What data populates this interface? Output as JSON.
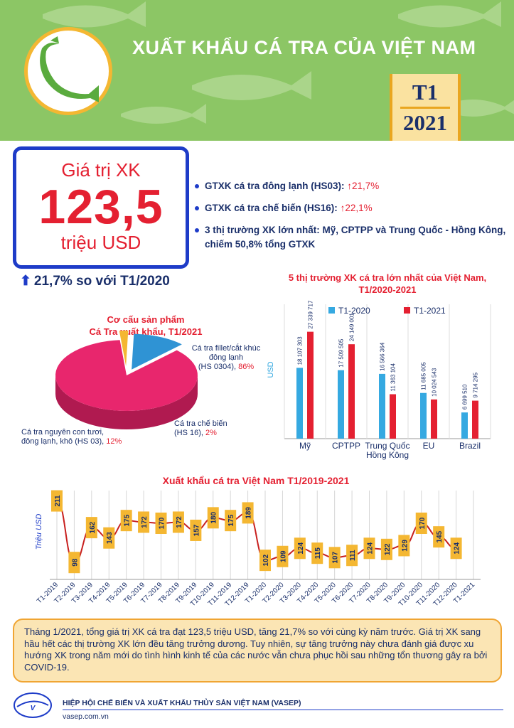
{
  "header": {
    "title": "XUẤT KHẨU CÁ TRA CỦA VIỆT NAM",
    "month": "T1",
    "year": "2021"
  },
  "headline": {
    "label": "Giá trị XK",
    "value": "123,5",
    "unit": "triệu USD",
    "growth_arrow": "⬆",
    "growth": "21,7% so với T1/2020"
  },
  "bullets": [
    {
      "text": "GTXK cá tra đông lạnh (HS03): ",
      "highlight": "↑21,7%"
    },
    {
      "text": "GTXK cá tra chế biến (HS16): ",
      "highlight": "↑22,1%"
    },
    {
      "text": "3 thị trường XK lớn nhất: Mỹ, CPTPP và Trung Quốc - Hồng Kông, chiếm 50,8% tổng GTXK",
      "highlight": ""
    }
  ],
  "colors": {
    "header_green": "#8cc665",
    "accent_red": "#e42031",
    "accent_blue": "#1e3cc8",
    "navy": "#1a2f6a",
    "bar_2020": "#35a9e1",
    "bar_2021": "#e42031",
    "pie_fillet": "#e8266d",
    "pie_processed": "#f4b732",
    "pie_whole": "#2f93d4",
    "line": "#c8201f",
    "label_box": "#f4b732"
  },
  "icons": {
    "logo": "fish-icon",
    "growth": "arrow-up-icon",
    "footer_logo": "vasep-logo"
  },
  "chart_data": [
    {
      "type": "pie",
      "title_line1": "Cơ cấu sản phẩm",
      "title_line2": "Cá Tra xuất khẩu, T1/2021",
      "slices": [
        {
          "label_lines": [
            "Cá tra fillet/cắt khúc",
            "đông lạnh",
            "(HS 0304),"
          ],
          "value": 86,
          "pct_label": "86%"
        },
        {
          "label_lines": [
            "Cá tra chế biến",
            "(HS 16),"
          ],
          "value": 2,
          "pct_label": "2%"
        },
        {
          "label_lines": [
            "Cá tra nguyên con tươi,",
            "đông lạnh, khô (HS 03),"
          ],
          "value": 12,
          "pct_label": "12%"
        }
      ]
    },
    {
      "type": "bar",
      "title_line1": "5 thị trường XK cá tra lớn nhất của Việt Nam,",
      "title_line2": "T1/2020-2021",
      "ylabel": "USD",
      "categories": [
        [
          "Mỹ"
        ],
        [
          "CPTPP"
        ],
        [
          "Trung Quốc",
          "Hồng Kông"
        ],
        [
          "EU"
        ],
        [
          "Brazil"
        ]
      ],
      "series": [
        {
          "name": "T1-2020",
          "values": [
            18107303,
            17509505,
            16566364,
            11685005,
            6699510
          ],
          "labels": [
            "18 107 303",
            "17 509 505",
            "16 566 364",
            "11 685 005",
            "6 699 510"
          ]
        },
        {
          "name": "T1-2021",
          "values": [
            27339717,
            24149001,
            11363104,
            10024543,
            9714295
          ],
          "labels": [
            "27 339 717",
            "24 149 001",
            "11 363 104",
            "10 024 543",
            "9 714 295"
          ]
        }
      ]
    },
    {
      "type": "line",
      "title": "Xuất khẩu cá tra Việt Nam T1/2019-2021",
      "ylabel": "Triệu USD",
      "x": [
        "T1-2019",
        "T2-2019",
        "T3-2019",
        "T4-2019",
        "T5-2019",
        "T6-2019",
        "T7-2019",
        "T8-2019",
        "T9-2019",
        "T10-2019",
        "T11-2019",
        "T12-2019",
        "T1-2020",
        "T2-2020",
        "T3-2020",
        "T4-2020",
        "T5-2020",
        "T6-2020",
        "T7-2020",
        "T8-2020",
        "T9-2020",
        "T10-2020",
        "T11-2020",
        "T12-2020",
        "T1-2021"
      ],
      "values": [
        211,
        98,
        162,
        143,
        175,
        172,
        170,
        172,
        157,
        180,
        175,
        189,
        102,
        109,
        124,
        115,
        107,
        111,
        124,
        122,
        129,
        170,
        145,
        124,
        null
      ],
      "labels": [
        "211",
        "98",
        "162",
        "143",
        "175",
        "172",
        "170",
        "172",
        "157",
        "180",
        "175",
        "189",
        "102",
        "109",
        "124",
        "115",
        "107",
        "111",
        "124",
        "122",
        "129",
        "170",
        "145",
        "124",
        ""
      ]
    }
  ],
  "summary": "Tháng 1/2021, tổng giá trị XK cá tra đạt 123,5 triệu USD, tăng 21,7% so với cùng kỳ năm trước. Giá trị XK sang hầu hết các thị trường XK lớn đều tăng trưởng dương. Tuy nhiên, sự tăng trưởng này chưa đánh giá được xu hướng XK trong năm mới do tình hình kinh tế của các nước vẫn chưa phục hồi sau những tổn thương gây ra bởi COVID-19.",
  "footer": {
    "org": "HIỆP HỘI CHẾ BIẾN VÀ XUẤT KHẨU THỦY SẢN VIỆT NAM (VASEP)",
    "site": "vasep.com.vn"
  }
}
